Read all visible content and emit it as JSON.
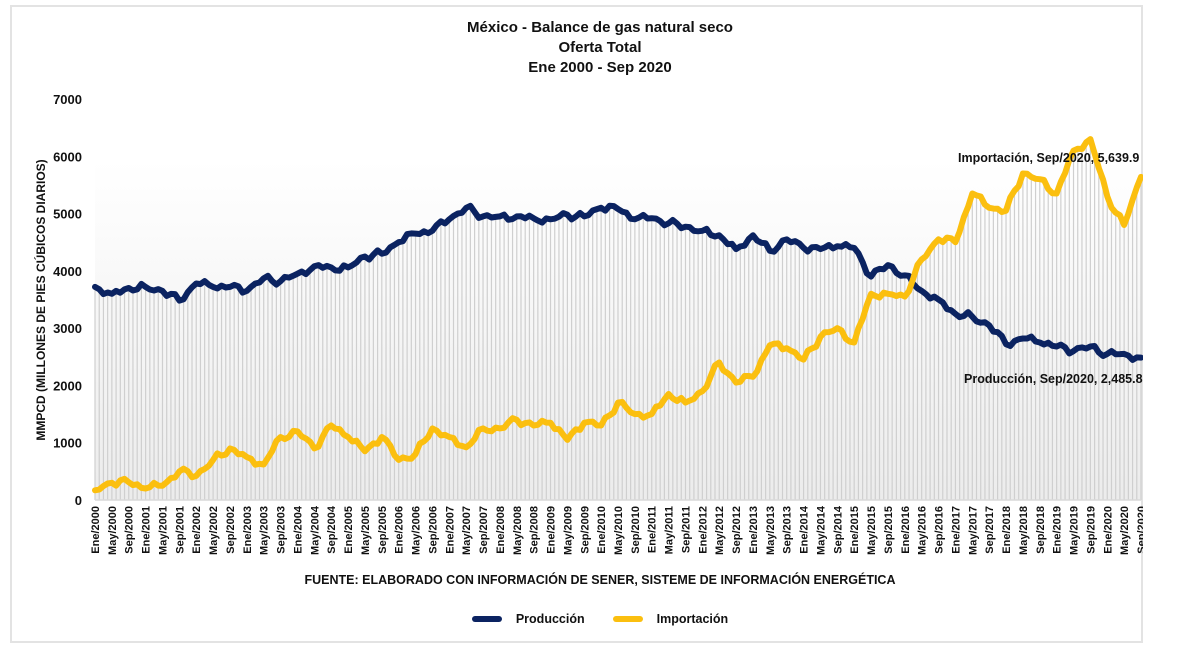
{
  "chart_data": {
    "type": "line",
    "title": "México - Balance de gas natural seco",
    "subtitle": "Oferta Total",
    "period": "Ene 2000 - Sep 2020",
    "xlabel": "FUENTE: ELABORADO CON INFORMACIÓN DE SENER, SISTEME DE INFORMACIÓN ENERGÉTICA",
    "ylabel": "MMPCD (MILLONES DE PIES CÚBICOS DIARIOS)",
    "ylim": [
      0,
      7000
    ],
    "yticks": [
      "0",
      "1000",
      "2000",
      "3000",
      "4000",
      "5000",
      "6000",
      "7000"
    ],
    "grid": false,
    "drop_lines": true,
    "legend_position": "bottom",
    "x_tick_labels": [
      "Ene/2000",
      "May/2000",
      "Sep/2000",
      "Ene/2001",
      "May/2001",
      "Sep/2001",
      "Ene/2002",
      "May/2002",
      "Sep/2002",
      "Ene/2003",
      "May/2003",
      "Sep/2003",
      "Ene/2004",
      "May/2004",
      "Sep/2004",
      "Ene/2005",
      "May/2005",
      "Sep/2005",
      "Ene/2006",
      "May/2006",
      "Sep/2006",
      "Ene/2007",
      "May/2007",
      "Sep/2007",
      "Ene/2008",
      "May/2008",
      "Sep/2008",
      "Ene/2009",
      "May/2009",
      "Sep/2009",
      "Ene/2010",
      "May/2010",
      "Sep/2010",
      "Ene/2011",
      "May/2011",
      "Sep/2011",
      "Ene/2012",
      "May/2012",
      "Sep/2012",
      "Ene/2013",
      "May/2013",
      "Sep/2013",
      "Ene/2014",
      "May/2014",
      "Sep/2014",
      "Ene/2015",
      "May/2015",
      "Sep/2015",
      "Ene/2016",
      "May/2016",
      "Sep/2016",
      "Ene/2017",
      "May/2017",
      "Sep/2017",
      "Ene/2018",
      "May/2018",
      "Sep/2018",
      "Ene/2019",
      "May/2019",
      "Sep/2019",
      "Ene/2020",
      "May/2020",
      "Sep/2020"
    ],
    "x_tick_interval_months": 4,
    "series": [
      {
        "name": "Producción",
        "color": "#0b2361",
        "values_every_4_months": [
          3720,
          3600,
          3700,
          3720,
          3650,
          3480,
          3780,
          3720,
          3720,
          3650,
          3870,
          3820,
          3950,
          4080,
          4060,
          4060,
          4250,
          4300,
          4500,
          4650,
          4700,
          4900,
          5100,
          4950,
          4950,
          4950,
          4920,
          4900,
          4980,
          4950,
          5100,
          5080,
          4900,
          4920,
          4830,
          4770,
          4700,
          4620,
          4380,
          4620,
          4350,
          4550,
          4400,
          4380,
          4430,
          4400,
          3900,
          4100,
          3920,
          3650,
          3500,
          3250,
          3200,
          3050,
          2720,
          2820,
          2750,
          2680,
          2600,
          2680,
          2550,
          2550,
          2485.8
        ]
      },
      {
        "name": "Importación",
        "color": "#fbbf0f",
        "values_every_4_months": [
          170,
          300,
          310,
          200,
          250,
          500,
          420,
          700,
          900,
          750,
          620,
          1100,
          1200,
          900,
          1300,
          1100,
          850,
          1100,
          700,
          800,
          1250,
          1100,
          920,
          1250,
          1250,
          1400,
          1300,
          1350,
          1050,
          1350,
          1300,
          1700,
          1500,
          1500,
          1850,
          1700,
          1900,
          2400,
          2050,
          2150,
          2700,
          2650,
          2450,
          2850,
          3000,
          2750,
          3600,
          3600,
          3550,
          4200,
          4550,
          4500,
          5350,
          5100,
          5050,
          5700,
          5600,
          5350,
          6100,
          6300,
          5300,
          4800,
          5639.9
        ]
      }
    ],
    "annotations": [
      {
        "series": "Importación",
        "text": "Importación, Sep/2020, 5,639.9"
      },
      {
        "series": "Producción",
        "text": "Producción, Sep/2020, 2,485.8"
      }
    ]
  },
  "legend": {
    "items": [
      {
        "label": "Producción",
        "color": "#0b2361"
      },
      {
        "label": "Importación",
        "color": "#fbbf0f"
      }
    ]
  }
}
